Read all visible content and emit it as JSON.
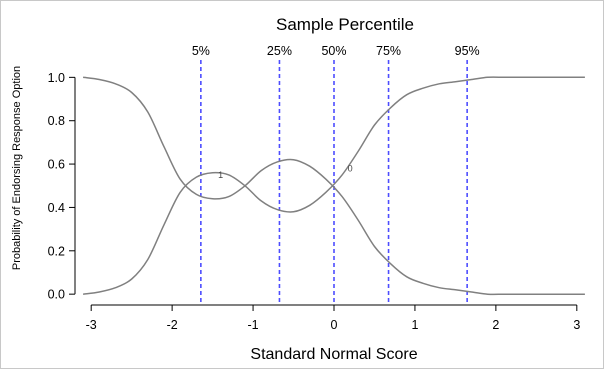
{
  "chart_data": {
    "type": "line",
    "title": "Sample Percentile",
    "xlabel": "Standard Normal Score",
    "ylabel": "Probability of Endorsing Response Option",
    "xlim": [
      -3.2,
      3.2
    ],
    "ylim": [
      -0.05,
      1.08
    ],
    "x_ticks": [
      "-3",
      "-2",
      "-1",
      "0",
      "1",
      "2",
      "3"
    ],
    "x_tick_values": [
      -3,
      -2,
      -1,
      0,
      1,
      2,
      3
    ],
    "y_ticks": [
      "0.0",
      "0.2",
      "0.4",
      "0.6",
      "0.8",
      "1.0"
    ],
    "y_tick_values": [
      0,
      0.2,
      0.4,
      0.6,
      0.8,
      1.0
    ],
    "percentiles": [
      {
        "label": "5%",
        "x": -1.645
      },
      {
        "label": "25%",
        "x": -0.674
      },
      {
        "label": "50%",
        "x": 0
      },
      {
        "label": "75%",
        "x": 0.674
      },
      {
        "label": "95%",
        "x": 1.645
      }
    ],
    "x": [
      -3.1,
      -2.9,
      -2.7,
      -2.5,
      -2.3,
      -2.1,
      -1.9,
      -1.7,
      -1.5,
      -1.3,
      -1.1,
      -0.9,
      -0.7,
      -0.5,
      -0.3,
      -0.1,
      0.1,
      0.3,
      0.5,
      0.7,
      0.9,
      1.1,
      1.3,
      1.5,
      1.7,
      1.9,
      2.1,
      2.3,
      2.5,
      2.7,
      2.9,
      3.1
    ],
    "series": [
      {
        "name": "1",
        "label_at": [
          -1.4,
          0.535
        ],
        "values": [
          0.0,
          0.01,
          0.03,
          0.07,
          0.16,
          0.32,
          0.47,
          0.54,
          0.56,
          0.55,
          0.5,
          0.43,
          0.39,
          0.38,
          0.41,
          0.47,
          0.55,
          0.66,
          0.78,
          0.86,
          0.92,
          0.95,
          0.97,
          0.98,
          0.99,
          1.0,
          1.0,
          1.0,
          1.0,
          1.0,
          1.0,
          1.0
        ]
      },
      {
        "name": "0",
        "label_at": [
          0.2,
          0.565
        ],
        "values": [
          1.0,
          0.99,
          0.97,
          0.93,
          0.84,
          0.68,
          0.53,
          0.46,
          0.44,
          0.45,
          0.5,
          0.57,
          0.61,
          0.62,
          0.59,
          0.53,
          0.45,
          0.34,
          0.22,
          0.14,
          0.08,
          0.05,
          0.03,
          0.02,
          0.01,
          0.0,
          0.0,
          0.0,
          0.0,
          0.0,
          0.0,
          0.0
        ]
      }
    ],
    "colors": {
      "curve": "#808080",
      "percentile_line": "#4d4dff",
      "axis": "#000000",
      "border": "#c8c8c8"
    },
    "grid": false,
    "legend": "none"
  }
}
